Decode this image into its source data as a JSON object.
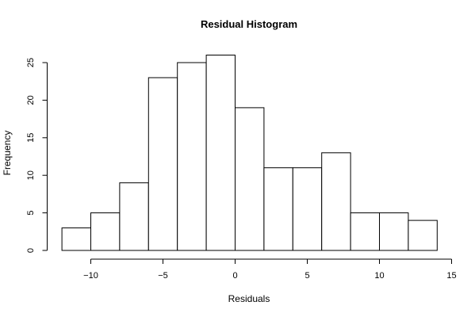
{
  "chart_data": {
    "type": "bar",
    "subtype": "histogram",
    "title": "Residual Histogram",
    "xlabel": "Residuals",
    "ylabel": "Frequency",
    "bin_edges": [
      -12,
      -10,
      -8,
      -6,
      -4,
      -2,
      0,
      2,
      4,
      6,
      8,
      10,
      12,
      14
    ],
    "values": [
      3,
      5,
      9,
      23,
      25,
      26,
      19,
      11,
      11,
      13,
      5,
      5,
      4
    ],
    "xlim": [
      -12,
      15
    ],
    "ylim": [
      0,
      26
    ],
    "x_ticks": [
      -10,
      -5,
      0,
      5,
      10,
      15
    ],
    "x_tick_labels": [
      "−10",
      "−5",
      "0",
      "5",
      "10",
      "15"
    ],
    "y_ticks": [
      0,
      5,
      10,
      15,
      20,
      25
    ],
    "y_tick_labels": [
      "0",
      "5",
      "10",
      "15",
      "20",
      "25"
    ],
    "grid": false,
    "legend": "none",
    "bar_fill": "#ffffff",
    "bar_stroke": "#000000"
  }
}
